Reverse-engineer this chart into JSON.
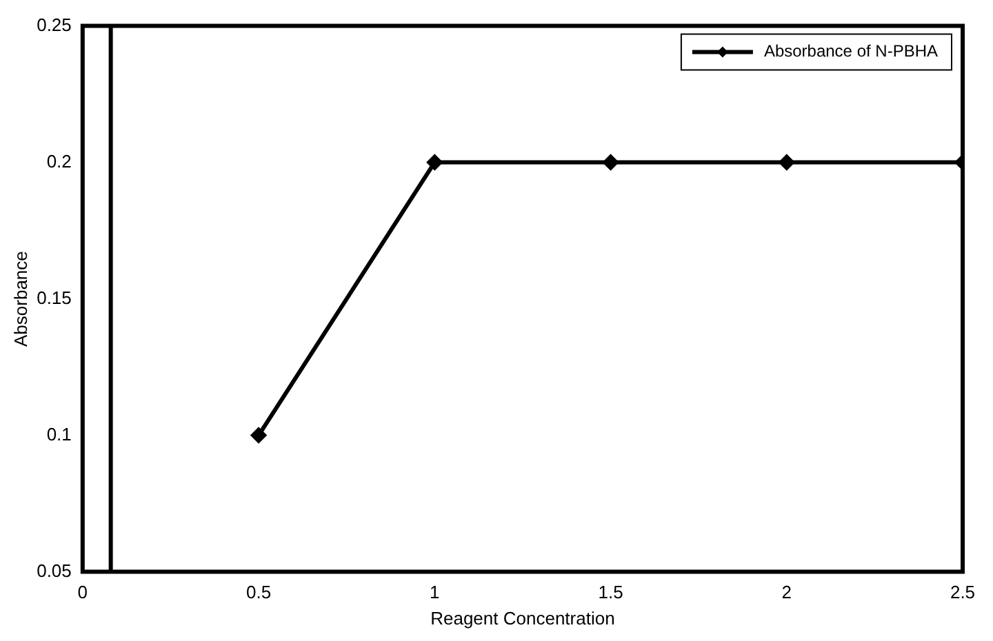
{
  "chart_data": {
    "type": "line",
    "xlabel": "Reagent Concentration",
    "ylabel": "Absorbance",
    "x": [
      0.5,
      1,
      1.5,
      2,
      2.5
    ],
    "series": [
      {
        "name": "Absorbance of N-PBHA",
        "color": "#000000",
        "values": [
          0.1,
          0.2,
          0.2,
          0.2,
          0.2
        ]
      }
    ],
    "xlim": [
      0,
      2.5
    ],
    "xticks": [
      0,
      0.5,
      1,
      1.5,
      2,
      2.5
    ],
    "ylim": [
      0.05,
      0.25
    ],
    "yticks": [
      0.05,
      0.1,
      0.15,
      0.2,
      0.25
    ],
    "ref_lines": [
      {
        "axis": "x",
        "value": 0.08,
        "color": "#000000"
      }
    ],
    "grid": false,
    "legend": "top right",
    "marker": "diamond",
    "line_style": "solid"
  }
}
